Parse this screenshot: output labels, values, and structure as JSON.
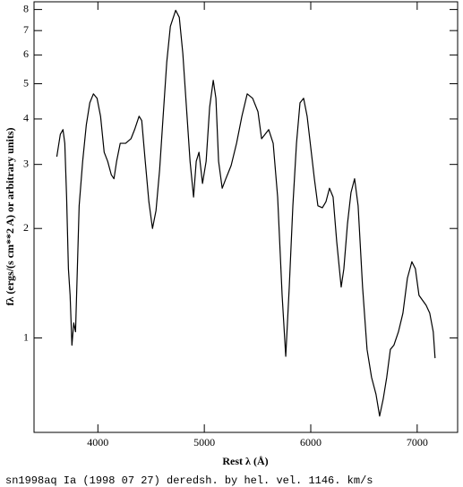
{
  "chart_data": {
    "type": "line",
    "caption": "sn1998aq Ia (1998 07 27) deredsh. by hel. vel.  1146. km/s",
    "xlabel": "Rest λ (Å)",
    "ylabel": "fλ (ergs/(s cm**2 A) or arbitrary units)",
    "color": "#000000",
    "log_y": true,
    "xlim": [
      3400,
      7380
    ],
    "ylim": [
      0.55,
      8.4
    ],
    "xticks": [
      4000,
      5000,
      6000,
      7000
    ],
    "yticks": [
      1,
      2,
      3,
      4,
      5,
      6,
      7,
      8
    ],
    "x": [
      3614,
      3647,
      3672,
      3689,
      3706,
      3723,
      3739,
      3756,
      3773,
      3790,
      3824,
      3857,
      3891,
      3924,
      3958,
      3992,
      4025,
      4059,
      4092,
      4126,
      4151,
      4176,
      4210,
      4261,
      4311,
      4345,
      4387,
      4412,
      4445,
      4479,
      4513,
      4546,
      4580,
      4613,
      4647,
      4681,
      4731,
      4765,
      4798,
      4832,
      4866,
      4899,
      4924,
      4950,
      4983,
      5017,
      5050,
      5084,
      5109,
      5134,
      5168,
      5202,
      5252,
      5303,
      5353,
      5403,
      5454,
      5504,
      5538,
      5571,
      5605,
      5647,
      5689,
      5731,
      5765,
      5798,
      5832,
      5866,
      5899,
      5933,
      5966,
      6000,
      6034,
      6067,
      6109,
      6143,
      6176,
      6210,
      6244,
      6286,
      6311,
      6345,
      6378,
      6412,
      6445,
      6487,
      6529,
      6571,
      6613,
      6647,
      6681,
      6714,
      6748,
      6781,
      6824,
      6866,
      6908,
      6950,
      6983,
      7017,
      7050,
      7084,
      7118,
      7151,
      7168
    ],
    "values": [
      3.15,
      3.63,
      3.74,
      3.43,
      2.44,
      1.55,
      1.31,
      0.955,
      1.1,
      1.04,
      2.31,
      3.06,
      3.85,
      4.43,
      4.69,
      4.56,
      4.07,
      3.24,
      3.06,
      2.81,
      2.74,
      3.06,
      3.43,
      3.43,
      3.53,
      3.74,
      4.07,
      3.96,
      3.06,
      2.37,
      2.0,
      2.24,
      2.9,
      4.07,
      5.73,
      7.19,
      7.96,
      7.61,
      6.06,
      4.31,
      3.06,
      2.44,
      3.06,
      3.24,
      2.66,
      3.06,
      4.31,
      5.11,
      4.56,
      3.06,
      2.58,
      2.74,
      2.98,
      3.43,
      4.07,
      4.69,
      4.56,
      4.19,
      3.53,
      3.63,
      3.74,
      3.43,
      2.44,
      1.31,
      0.89,
      1.38,
      2.31,
      3.43,
      4.43,
      4.56,
      4.07,
      3.34,
      2.74,
      2.31,
      2.28,
      2.37,
      2.58,
      2.44,
      1.84,
      1.38,
      1.55,
      2.06,
      2.51,
      2.74,
      2.31,
      1.38,
      0.93,
      0.78,
      0.7,
      0.61,
      0.68,
      0.78,
      0.93,
      0.955,
      1.04,
      1.17,
      1.46,
      1.62,
      1.55,
      1.31,
      1.27,
      1.23,
      1.17,
      1.04,
      0.88
    ]
  }
}
